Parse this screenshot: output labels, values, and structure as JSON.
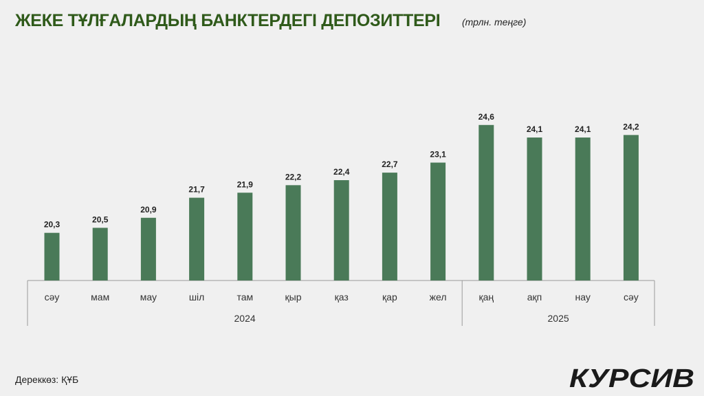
{
  "header": {
    "title": "ЖЕКЕ ТҰЛҒАЛАРДЫҢ БАНКТЕРДЕГІ ДЕПОЗИТТЕРІ",
    "unit": "(трлн. теңге)"
  },
  "footer": {
    "source": "Дереккөз: ҚҰБ",
    "logo_text": "КУРСИВ"
  },
  "colors": {
    "bar": "#4a7a58",
    "title": "#2f5a1a",
    "axis": "#9a9a9a"
  },
  "chart_data": {
    "type": "bar",
    "title": "ЖЕКЕ ТҰЛҒАЛАРДЫҢ БАНКТЕРДЕГІ ДЕПОЗИТТЕРІ",
    "ylabel": "",
    "xlabel": "",
    "categories": [
      "сәу",
      "мам",
      "мау",
      "шіл",
      "там",
      "қыр",
      "қаз",
      "қар",
      "жел",
      "қаң",
      "ақп",
      "нау",
      "сәу"
    ],
    "values": [
      20.3,
      20.5,
      20.9,
      21.7,
      21.9,
      22.2,
      22.4,
      22.7,
      23.1,
      24.6,
      24.1,
      24.1,
      24.2
    ],
    "value_labels": [
      "20,3",
      "20,5",
      "20,9",
      "21,7",
      "21,9",
      "22,2",
      "22,4",
      "22,7",
      "23,1",
      "24,6",
      "24,1",
      "24,1",
      "24,2"
    ],
    "groups": [
      {
        "label": "2024",
        "count": 9
      },
      {
        "label": "2025",
        "count": 4
      }
    ],
    "grid": false,
    "legend": "none"
  }
}
